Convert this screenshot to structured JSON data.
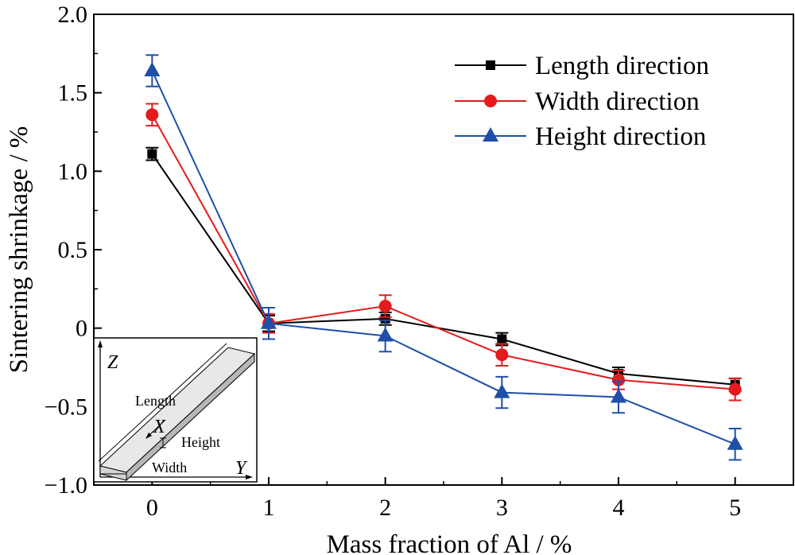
{
  "chart_data": {
    "type": "line",
    "xlabel": "Mass fraction of Al  / %",
    "ylabel": "Sintering shrinkage / %",
    "x": [
      0,
      1,
      2,
      3,
      4,
      5
    ],
    "xlim": [
      -0.5,
      5.5
    ],
    "ylim": [
      -1.0,
      2.0
    ],
    "x_ticks": [
      "0",
      "1",
      "2",
      "3",
      "4",
      "5"
    ],
    "y_ticks": [
      "−1.0",
      "−0.5",
      "0",
      "0.5",
      "1.0",
      "1.5",
      "2.0"
    ],
    "y_tick_values": [
      -1.0,
      -0.5,
      0,
      0.5,
      1.0,
      1.5,
      2.0
    ],
    "grid": false,
    "legend_position": "top-right",
    "series": [
      {
        "name": "Length direction",
        "marker": "square",
        "color": "#000000",
        "values": [
          1.11,
          0.03,
          0.06,
          -0.07,
          -0.29,
          -0.36
        ],
        "errors": [
          0.04,
          0.05,
          0.04,
          0.04,
          0.04,
          0.04
        ]
      },
      {
        "name": "Width direction",
        "marker": "circle",
        "color": "#e41a1c",
        "values": [
          1.36,
          0.03,
          0.14,
          -0.17,
          -0.33,
          -0.39
        ],
        "errors": [
          0.07,
          0.06,
          0.07,
          0.07,
          0.06,
          0.07
        ]
      },
      {
        "name": "Height direction",
        "marker": "triangle",
        "color": "#1f4fa8",
        "values": [
          1.64,
          0.03,
          -0.05,
          -0.41,
          -0.44,
          -0.74
        ],
        "errors": [
          0.1,
          0.1,
          0.1,
          0.1,
          0.1,
          0.1
        ]
      }
    ],
    "inset": {
      "axis_z": "Z",
      "axis_x": "X",
      "axis_y": "Y",
      "label_length": "Length",
      "label_height": "Height",
      "label_width": "Width"
    }
  }
}
